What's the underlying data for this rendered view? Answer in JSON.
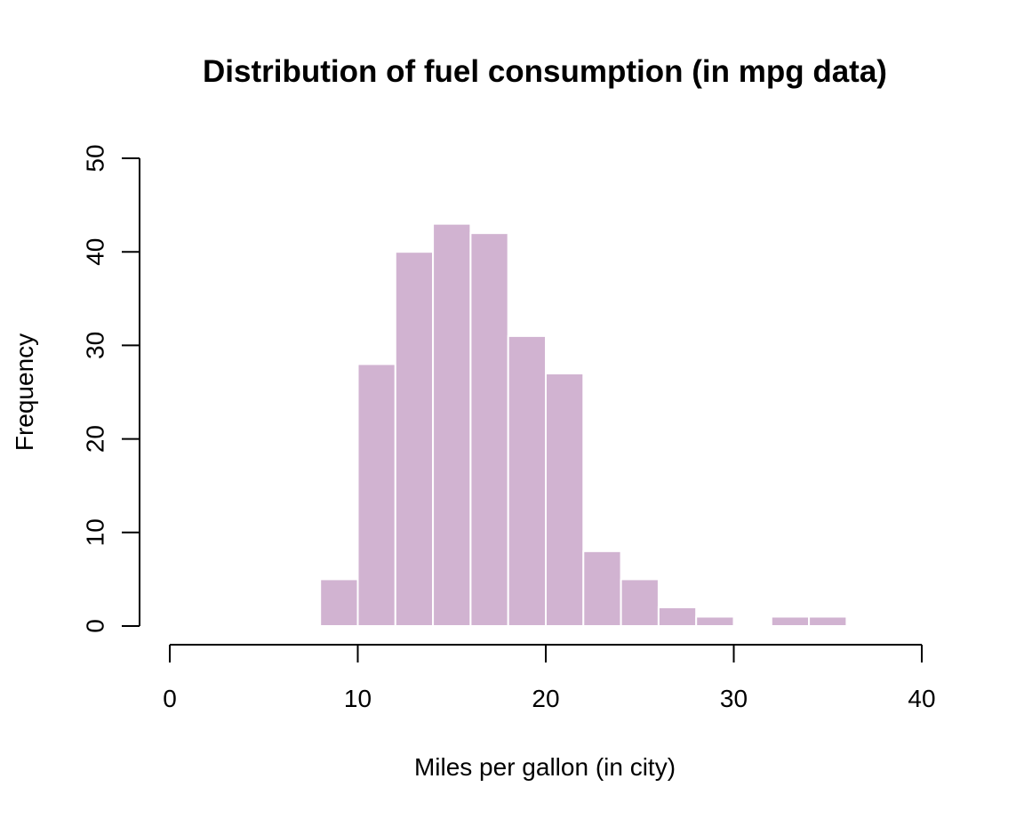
{
  "chart_data": {
    "type": "bar",
    "title": "Distribution of fuel consumption (in mpg data)",
    "xlabel": "Miles per gallon (in city)",
    "ylabel": "Frequency",
    "bin_edges": [
      8,
      10,
      12,
      14,
      16,
      18,
      20,
      22,
      24,
      26,
      28,
      30,
      32,
      34,
      36
    ],
    "values": [
      5,
      28,
      40,
      43,
      42,
      31,
      27,
      8,
      5,
      2,
      1,
      0,
      1,
      1
    ],
    "xlim": [
      0,
      40
    ],
    "ylim": [
      0,
      50
    ],
    "x_ticks": [
      0,
      10,
      20,
      30,
      40
    ],
    "y_ticks": [
      0,
      10,
      20,
      30,
      40,
      50
    ],
    "bar_color": "#d1b3d1",
    "bar_border_color": "#ffffff",
    "grid": false,
    "legend": "none"
  }
}
